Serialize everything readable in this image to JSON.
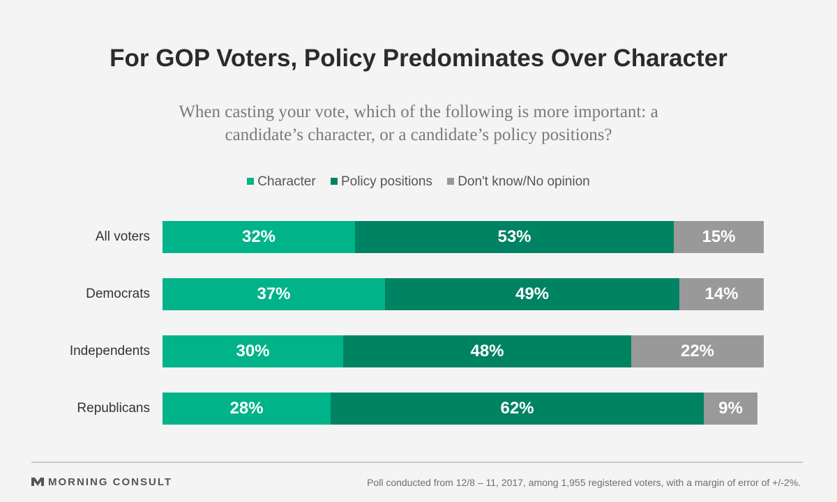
{
  "title": "For GOP Voters, Policy Predominates Over Character",
  "subtitle": "When casting your vote, which of the following is more important: a candidate’s character, or a candidate’s policy positions?",
  "footer": {
    "brand": "MORNING CONSULT",
    "note": "Poll conducted from 12/8 – 11, 2017, among 1,955 registered voters, with a margin of error of +/-2%."
  },
  "colors": {
    "character": "#00b388",
    "policy": "#008363",
    "dont_know": "#999999"
  },
  "chart_data": {
    "type": "bar",
    "orientation": "horizontal",
    "stacked": true,
    "title": "For GOP Voters, Policy Predominates Over Character",
    "subtitle": "When casting your vote, which of the following is more important: a candidate’s character, or a candidate’s policy positions?",
    "categories": [
      "All voters",
      "Democrats",
      "Independents",
      "Republicans"
    ],
    "series": [
      {
        "name": "Character",
        "values": [
          32,
          37,
          30,
          28
        ],
        "labels": [
          "32%",
          "37%",
          "30%",
          "28%"
        ]
      },
      {
        "name": "Policy positions",
        "values": [
          53,
          49,
          48,
          62
        ],
        "labels": [
          "53%",
          "49%",
          "48%",
          "62%"
        ]
      },
      {
        "name": "Don't know/No opinion",
        "values": [
          15,
          14,
          22,
          9
        ],
        "labels": [
          "15%",
          "14%",
          "22%",
          "9%"
        ]
      }
    ],
    "xlim": [
      0,
      100
    ],
    "unit": "%",
    "legend": "top-center",
    "grid": false
  }
}
